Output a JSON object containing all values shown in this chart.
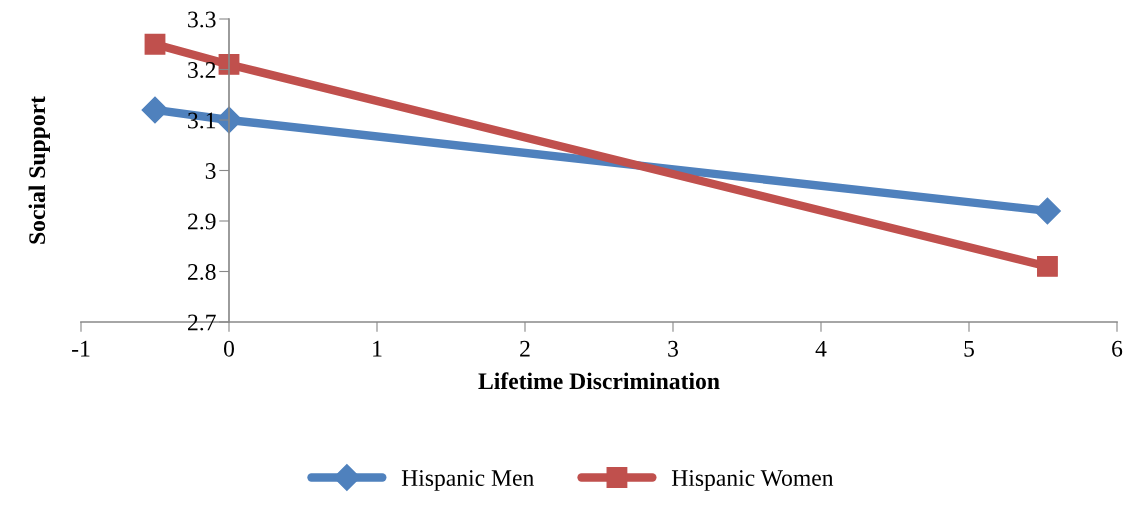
{
  "chart_data": {
    "type": "line",
    "xlabel": "Lifetime Discrimination",
    "ylabel": "Social Support",
    "series": [
      {
        "name": "Hispanic Men",
        "color": "#4f81bd",
        "marker": "diamond",
        "x": [
          -0.5,
          0,
          5.53
        ],
        "values": [
          3.12,
          3.1,
          2.92
        ]
      },
      {
        "name": "Hispanic Women",
        "color": "#c0504d",
        "marker": "square",
        "x": [
          -0.5,
          0,
          5.53
        ],
        "values": [
          3.25,
          3.21,
          2.81
        ]
      }
    ],
    "xlim": [
      -1,
      6
    ],
    "xticks": [
      -1,
      0,
      1,
      2,
      3,
      4,
      5,
      6
    ],
    "ylim": [
      2.7,
      3.3
    ],
    "yticks": [
      2.7,
      2.8,
      2.9,
      3,
      3.1,
      3.2,
      3.3
    ],
    "grid": false,
    "legend": "bottom"
  }
}
